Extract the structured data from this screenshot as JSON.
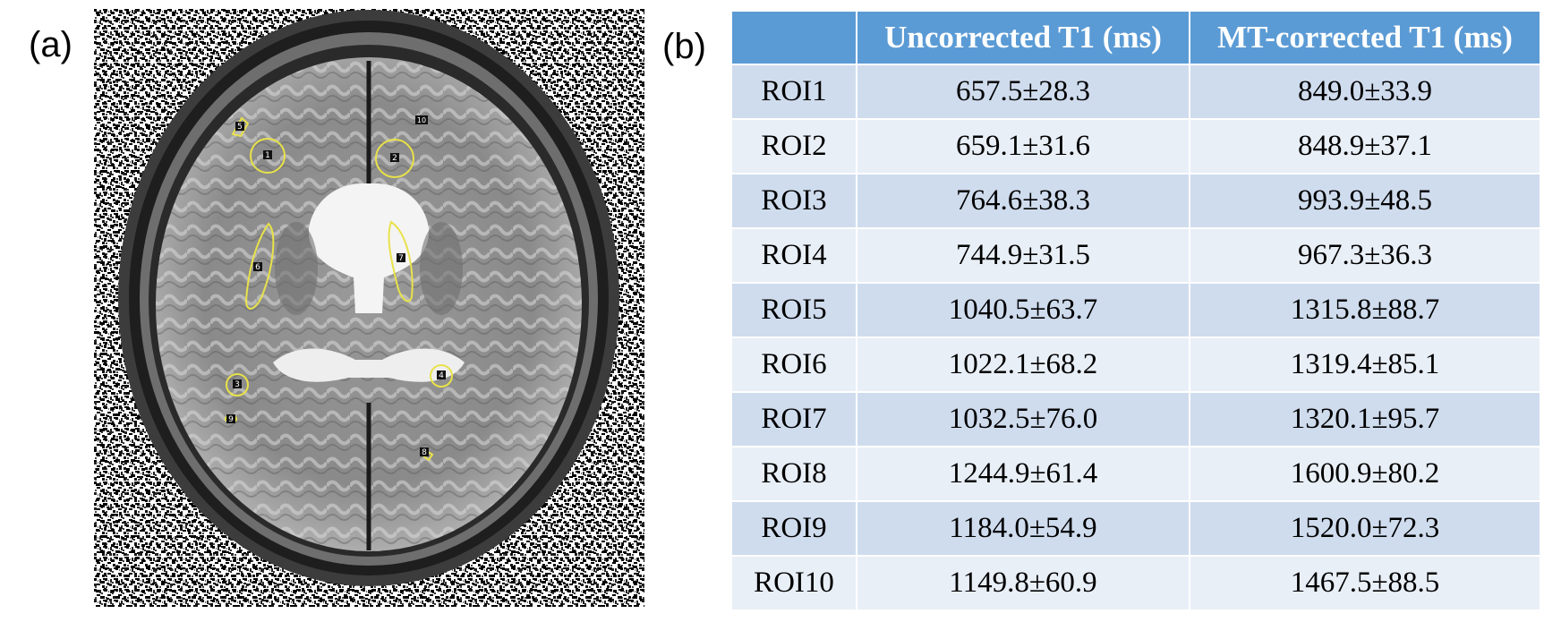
{
  "panels": {
    "a_label": "(a)",
    "b_label": "(b)"
  },
  "image": {
    "roi_labels": [
      "1",
      "2",
      "3",
      "4",
      "5",
      "6",
      "7",
      "8",
      "9",
      "10"
    ],
    "colors": {
      "roi_outline": "#e8e24a",
      "background": "#ffffff"
    }
  },
  "table": {
    "header_color": "#5b9bd5",
    "row_color_odd": "#cfdcee",
    "row_color_even": "#e9eff7",
    "headers": [
      "",
      "Uncorrected T1 (ms)",
      "MT-corrected T1 (ms)"
    ],
    "rows": [
      {
        "roi": "ROI1",
        "uncorrected": "657.5±28.3",
        "corrected": "849.0±33.9"
      },
      {
        "roi": "ROI2",
        "uncorrected": "659.1±31.6",
        "corrected": "848.9±37.1"
      },
      {
        "roi": "ROI3",
        "uncorrected": "764.6±38.3",
        "corrected": "993.9±48.5"
      },
      {
        "roi": "ROI4",
        "uncorrected": "744.9±31.5",
        "corrected": "967.3±36.3"
      },
      {
        "roi": "ROI5",
        "uncorrected": "1040.5±63.7",
        "corrected": "1315.8±88.7"
      },
      {
        "roi": "ROI6",
        "uncorrected": "1022.1±68.2",
        "corrected": "1319.4±85.1"
      },
      {
        "roi": "ROI7",
        "uncorrected": "1032.5±76.0",
        "corrected": "1320.1±95.7"
      },
      {
        "roi": "ROI8",
        "uncorrected": "1244.9±61.4",
        "corrected": "1600.9±80.2"
      },
      {
        "roi": "ROI9",
        "uncorrected": "1184.0±54.9",
        "corrected": "1520.0±72.3"
      },
      {
        "roi": "ROI10",
        "uncorrected": "1149.8±60.9",
        "corrected": "1467.5±88.5"
      }
    ]
  }
}
